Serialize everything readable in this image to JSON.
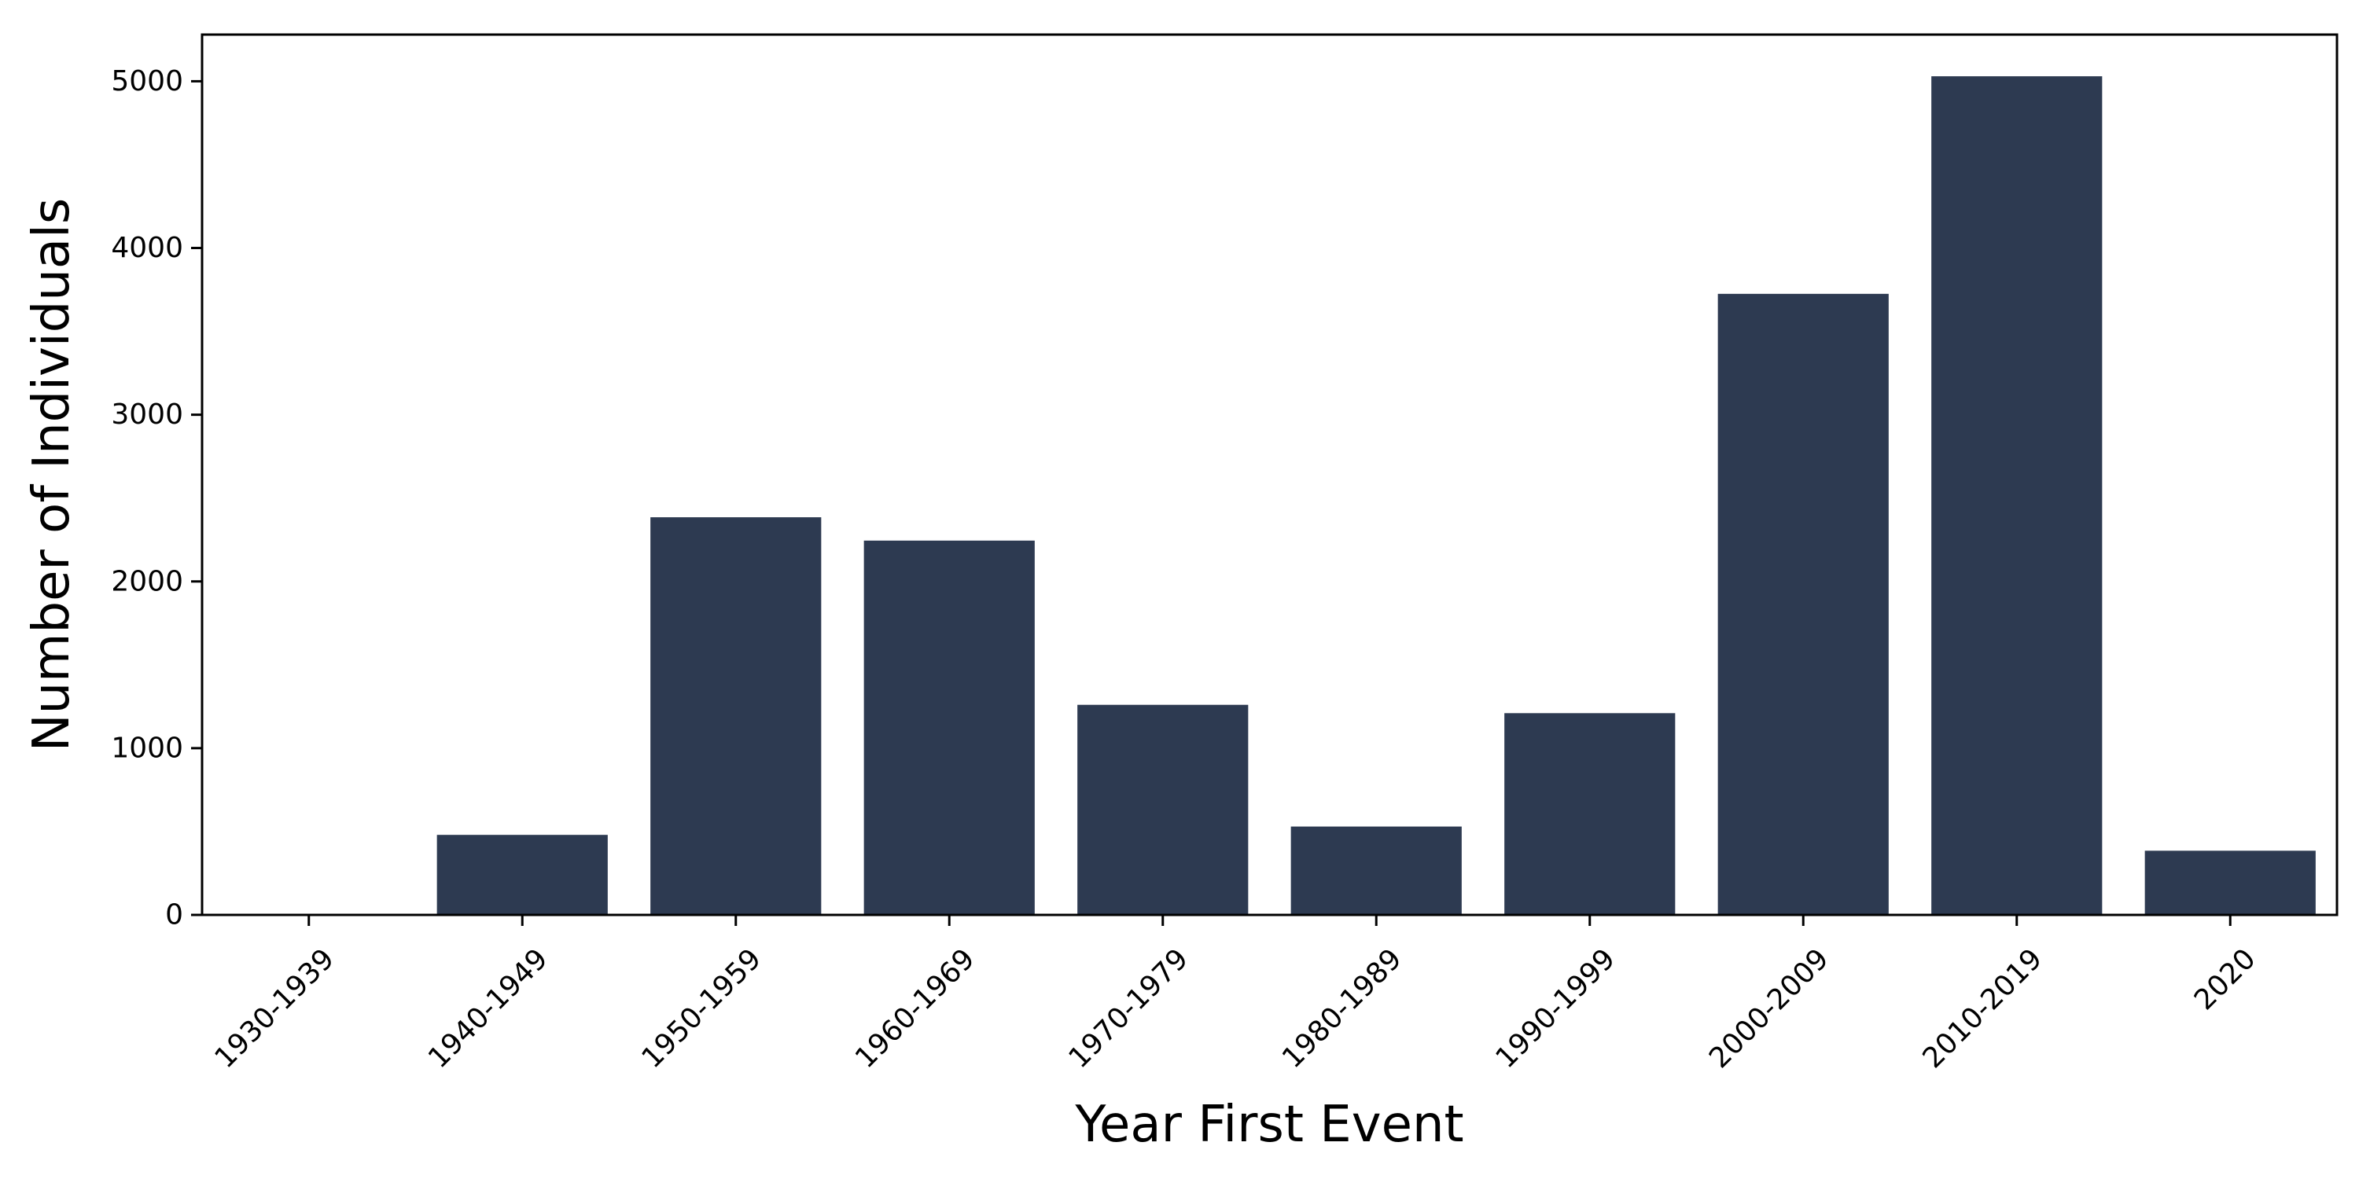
{
  "chart_data": {
    "type": "bar",
    "title": "",
    "xlabel": "Year First Event",
    "ylabel": "Number of Individuals",
    "categories": [
      "1930-1939",
      "1940-1949",
      "1950-1959",
      "1960-1969",
      "1970-1979",
      "1980-1989",
      "1990-1999",
      "2000-2009",
      "2010-2019",
      "2020"
    ],
    "values": [
      0,
      480,
      2385,
      2245,
      1260,
      530,
      1210,
      3725,
      5030,
      385
    ],
    "ylim": [
      0,
      5280
    ],
    "yticks": [
      0,
      1000,
      2000,
      3000,
      4000,
      5000
    ],
    "ytick_labels": [
      "0",
      "1000",
      "2000",
      "3000",
      "4000",
      "5000"
    ],
    "grid": false,
    "legend": "none",
    "colors": {
      "bar": "#2d3a51",
      "axis": "#000000",
      "text": "#000000",
      "background": "#ffffff"
    }
  }
}
